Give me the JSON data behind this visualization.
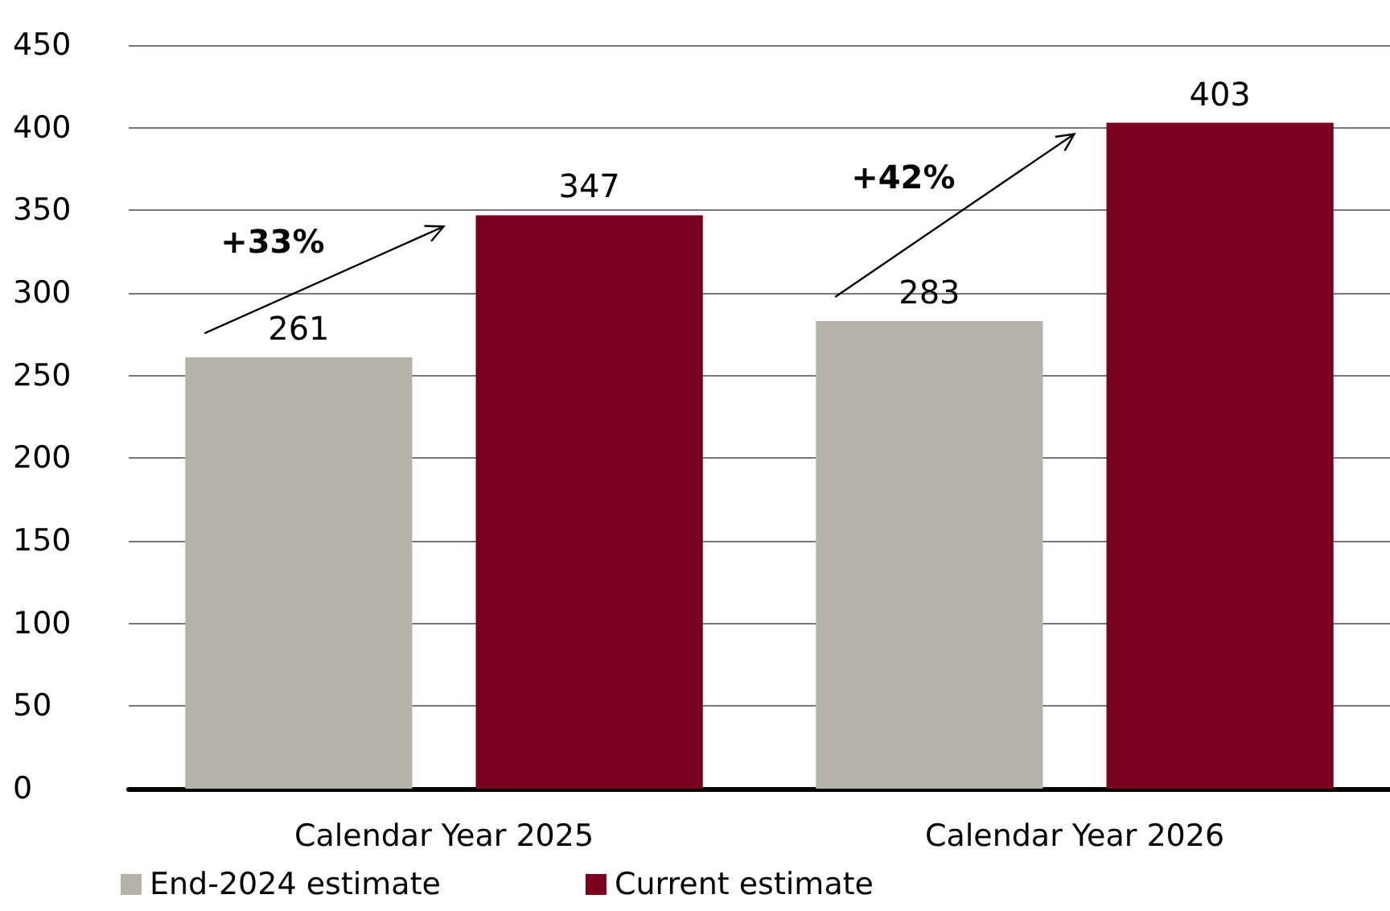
{
  "chart_data": {
    "type": "bar",
    "categories": [
      "Calendar Year 2025",
      "Calendar Year 2026"
    ],
    "series": [
      {
        "name": "End-2024 estimate",
        "color": "#b5b3a8",
        "values": [
          261,
          283
        ]
      },
      {
        "name": "Current estimate",
        "color": "#7a0020",
        "values": [
          347,
          403
        ]
      }
    ],
    "ylim": [
      0,
      450
    ],
    "yticks": [
      0,
      50,
      100,
      150,
      200,
      250,
      300,
      350,
      400,
      450
    ],
    "grid": "y",
    "legend": "bottom left",
    "data_labels": true,
    "annotations": [
      "+33%",
      "+42%"
    ]
  }
}
